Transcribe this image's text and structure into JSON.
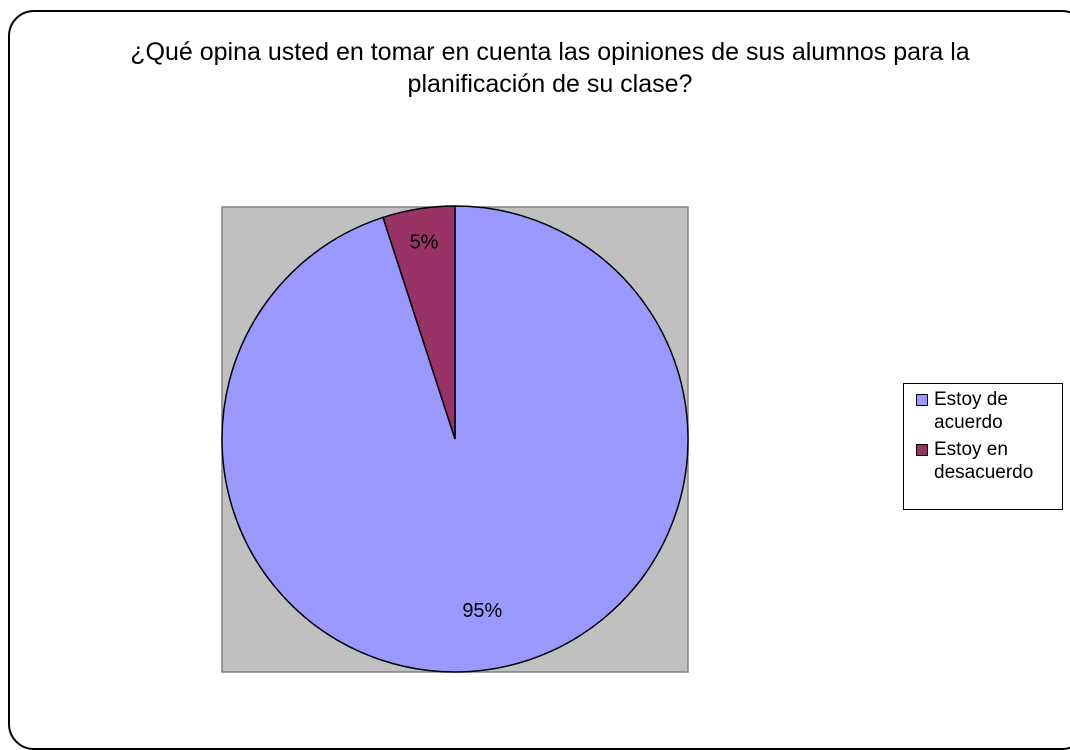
{
  "chart_data": {
    "type": "pie",
    "title": "¿Qué opina usted en tomar en cuenta las opiniones de sus alumnos para la planificación de su clase?",
    "categories": [
      "Estoy de acuerdo",
      "Estoy en desacuerdo"
    ],
    "values": [
      95,
      5
    ],
    "value_labels": [
      "95%",
      "5%"
    ],
    "colors": [
      "#9999ff",
      "#993366"
    ],
    "legend": "right"
  }
}
